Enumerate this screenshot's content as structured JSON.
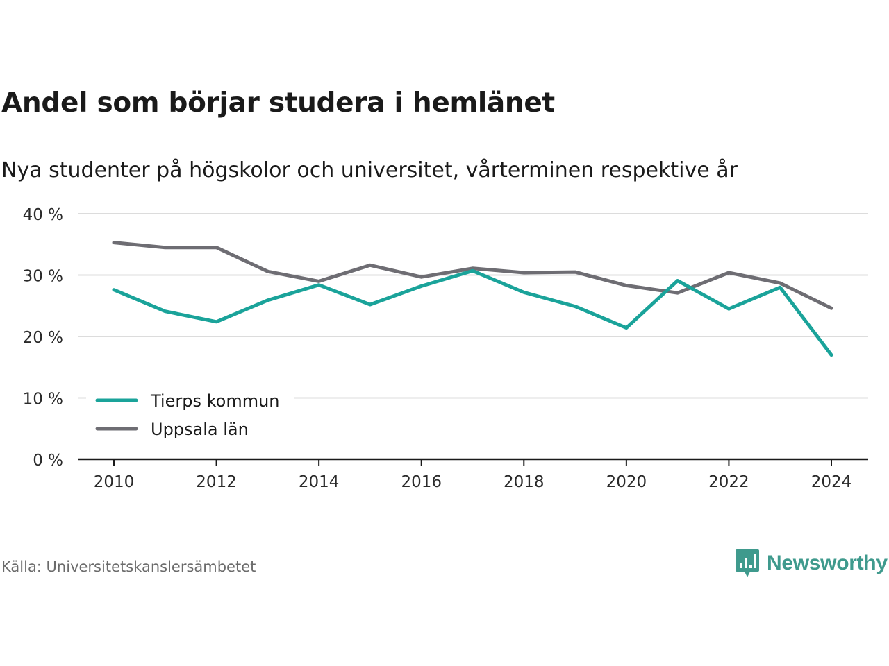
{
  "title": "Andel som börjar studera i hemlänet",
  "subtitle": "Nya studenter på högskolor och universitet, vårterminen respektive år",
  "source": "Källa: Universitetskanslersämbetet",
  "brand": {
    "name": "Newsworthy",
    "icon": "newsworthy-logo-icon",
    "color": "#3f9a8d"
  },
  "chart_data": {
    "type": "line",
    "x": [
      2010,
      2011,
      2012,
      2013,
      2014,
      2015,
      2016,
      2017,
      2018,
      2019,
      2020,
      2021,
      2022,
      2023,
      2024
    ],
    "series": [
      {
        "name": "Tierps kommun",
        "color": "#1aa39a",
        "values": [
          27.6,
          24.1,
          22.4,
          25.9,
          28.4,
          25.2,
          28.2,
          30.7,
          27.2,
          24.9,
          21.4,
          29.1,
          24.5,
          28.0,
          17.0
        ]
      },
      {
        "name": "Uppsala län",
        "color": "#6e6d73",
        "values": [
          35.3,
          34.5,
          34.5,
          30.6,
          29.0,
          31.6,
          29.7,
          31.1,
          30.4,
          30.5,
          28.3,
          27.1,
          30.4,
          28.7,
          24.6
        ]
      }
    ],
    "ylim": [
      0,
      40
    ],
    "yticks": [
      0,
      10,
      20,
      30,
      40
    ],
    "ytick_labels": [
      "0 %",
      "10 %",
      "20 %",
      "30 %",
      "40 %"
    ],
    "xticks": [
      2010,
      2012,
      2014,
      2016,
      2018,
      2020,
      2022,
      2024
    ],
    "xtick_labels": [
      "2010",
      "2012",
      "2014",
      "2016",
      "2018",
      "2020",
      "2022",
      "2024"
    ],
    "xlabel": "",
    "ylabel": "",
    "grid": true,
    "legend": "bottom-left"
  }
}
